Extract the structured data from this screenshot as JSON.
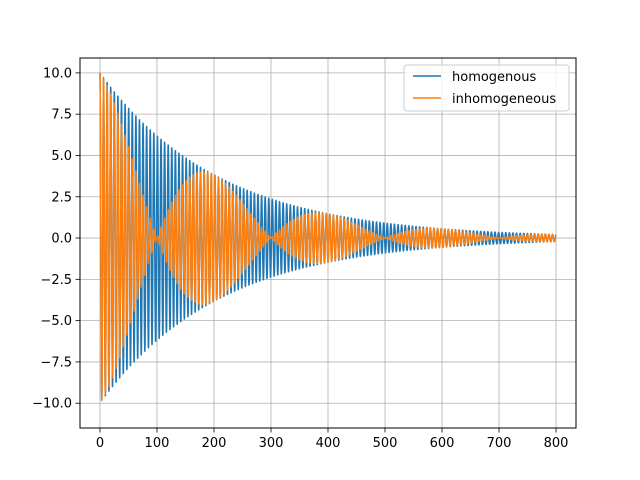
{
  "chart_data": {
    "type": "line",
    "title": "",
    "xlabel": "",
    "ylabel": "",
    "xlim": [
      -35,
      835
    ],
    "ylim": [
      -11.5,
      10.9
    ],
    "x_ticks": [
      0,
      100,
      200,
      300,
      400,
      500,
      600,
      700,
      800
    ],
    "x_tick_labels": [
      "0",
      "100",
      "200",
      "300",
      "400",
      "500",
      "600",
      "700",
      "800"
    ],
    "y_ticks": [
      10,
      7.5,
      5,
      2.5,
      0,
      -2.5,
      -5,
      -7.5,
      -10
    ],
    "y_tick_labels": [
      "10.0",
      "7.5",
      "5.0",
      "2.5",
      "0.0",
      "−2.5",
      "−5.0",
      "−7.5",
      "−10.0"
    ],
    "grid": true,
    "legend_position": "top-right",
    "x_range": [
      0,
      800
    ],
    "series": [
      {
        "name": "homogenous",
        "color": "#1f77b4",
        "amplitude": 10,
        "decay_rate": 0.0048,
        "oscillation_period": 6.3,
        "beat_period": null
      },
      {
        "name": "inhomogeneous",
        "color": "#ff7f0e",
        "amplitude": 10,
        "decay_rate": 0.0048,
        "oscillation_period": 6.3,
        "beat_period": 200
      }
    ]
  }
}
